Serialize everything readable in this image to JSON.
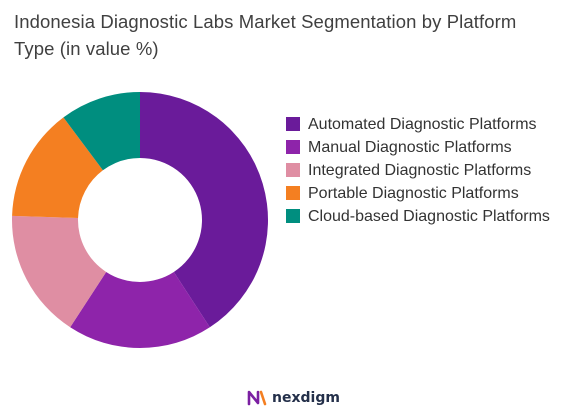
{
  "header": {
    "title": "Indonesia Diagnostic Labs Market Segmentation by Platform Type (in value %)"
  },
  "chart_data": {
    "type": "pie",
    "variant": "donut",
    "title": "Indonesia Diagnostic Labs Market Segmentation by Platform Type (in value %)",
    "legend_position": "right",
    "categories": [
      "Automated Diagnostic Platforms",
      "Manual Diagnostic Platforms",
      "Integrated Diagnostic Platforms",
      "Portable Diagnostic Platforms",
      "Cloud-based Diagnostic Platforms"
    ],
    "values": [
      40,
      18,
      16,
      14,
      10
    ],
    "colors": [
      "#6a1b9a",
      "#8e24aa",
      "#df8ea3",
      "#f47f21",
      "#008e7f"
    ]
  },
  "footer": {
    "logo_icon": "nexdigm-n-icon",
    "brand": "nexdigm"
  }
}
